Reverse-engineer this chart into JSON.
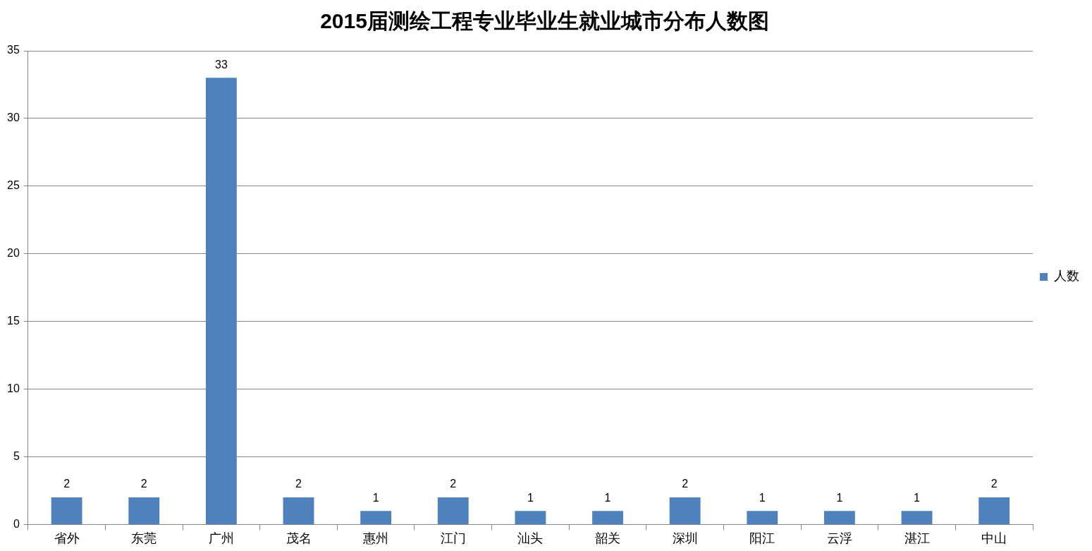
{
  "chart_data": {
    "type": "bar",
    "title": "2015届测绘工程专业毕业生就业城市分布人数图",
    "categories": [
      "省外",
      "东莞",
      "广州",
      "茂名",
      "惠州",
      "江门",
      "汕头",
      "韶关",
      "深圳",
      "阳江",
      "云浮",
      "湛江",
      "中山"
    ],
    "series": [
      {
        "name": "人数",
        "color": "#4f81bd",
        "values": [
          2,
          2,
          33,
          2,
          1,
          2,
          1,
          1,
          2,
          1,
          1,
          1,
          2
        ]
      }
    ],
    "ylim": [
      0,
      35
    ],
    "yticks": [
      0,
      5,
      10,
      15,
      20,
      25,
      30,
      35
    ],
    "grid": "y",
    "legend": "right",
    "data_labels": true
  }
}
